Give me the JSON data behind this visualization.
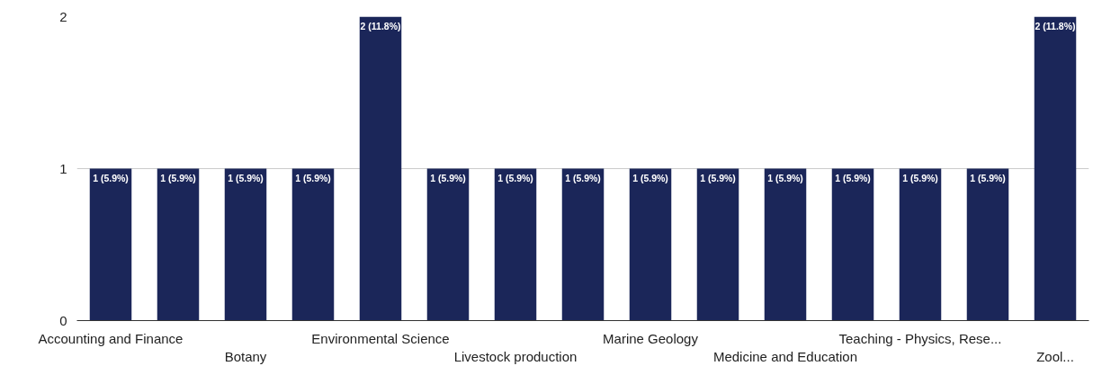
{
  "chart_data": {
    "type": "bar",
    "categories": [
      "Accounting and Finance",
      null,
      "Botany",
      null,
      "Environmental Science",
      null,
      "Livestock production",
      null,
      "Marine Geology",
      null,
      "Medicine and Education",
      null,
      "Teaching - Physics, Rese...",
      null,
      "Zool..."
    ],
    "values": [
      1,
      1,
      1,
      1,
      2,
      1,
      1,
      1,
      1,
      1,
      1,
      1,
      1,
      1,
      2
    ],
    "value_labels": [
      "1 (5.9%)",
      "1 (5.9%)",
      "1 (5.9%)",
      "1 (5.9%)",
      "2 (11.8%)",
      "1 (5.9%)",
      "1 (5.9%)",
      "1 (5.9%)",
      "1 (5.9%)",
      "1 (5.9%)",
      "1 (5.9%)",
      "1 (5.9%)",
      "1 (5.9%)",
      "1 (5.9%)",
      "2 (11.8%)"
    ],
    "color": "#1b2659",
    "ylim": [
      0,
      2
    ],
    "yticks": [
      0,
      1,
      2
    ],
    "grid": "y"
  }
}
